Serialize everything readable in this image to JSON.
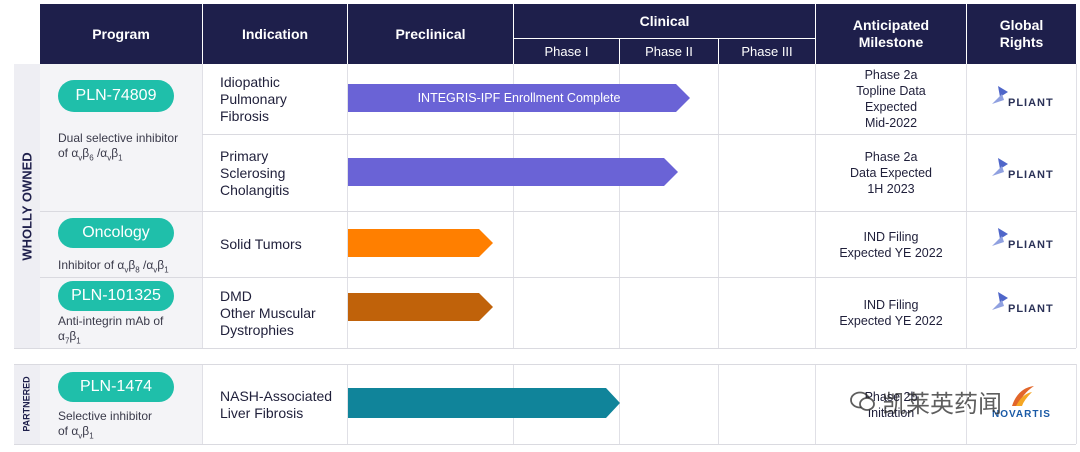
{
  "header": {
    "program": "Program",
    "indication": "Indication",
    "preclinical": "Preclinical",
    "clinical": "Clinical",
    "phase1": "Phase I",
    "phase2": "Phase II",
    "phase3": "Phase III",
    "milestone_line1": "Anticipated",
    "milestone_line2": "Milestone",
    "rights_line1": "Global",
    "rights_line2": "Rights"
  },
  "sections": {
    "wholly_owned": "WHOLLY OWNED",
    "partnered": "PARTNERED"
  },
  "programs": [
    {
      "name": "PLN-74809",
      "desc_line1": "Dual selective inhibitor",
      "desc_line2": "of αvβ6 /αvβ1"
    },
    {
      "name": "Oncology",
      "desc_line1": "Inhibitor of αvβ8 /αvβ1",
      "desc_line2": ""
    },
    {
      "name": "PLN-101325",
      "desc_line1": "Anti-integrin mAb of",
      "desc_line2": "α7β1"
    },
    {
      "name": "PLN-1474",
      "desc_line1": "Selective inhibitor",
      "desc_line2": "of αvβ1"
    }
  ],
  "rows": [
    {
      "indication": [
        "Idiopathic",
        "Pulmonary",
        "Fibrosis"
      ],
      "arrow_label": "INTEGRIS-IPF Enrollment Complete",
      "milestone": [
        "Phase 2a",
        "Topline Data",
        "Expected",
        "Mid-2022"
      ],
      "rights": "PLIANT",
      "color": "#6a63d6"
    },
    {
      "indication": [
        "Primary",
        "Sclerosing",
        "Cholangitis"
      ],
      "arrow_label": "",
      "milestone": [
        "Phase 2a",
        "Data Expected",
        "1H 2023"
      ],
      "rights": "PLIANT",
      "color": "#6a63d6"
    },
    {
      "indication": [
        "Solid Tumors"
      ],
      "arrow_label": "",
      "milestone": [
        "IND Filing",
        "Expected YE 2022"
      ],
      "rights": "PLIANT",
      "color": "#ff7f00"
    },
    {
      "indication": [
        "DMD",
        "Other Muscular",
        "Dystrophies"
      ],
      "arrow_label": "",
      "milestone": [
        "IND Filing",
        "Expected YE 2022"
      ],
      "rights": "PLIANT",
      "color": "#c0620a"
    },
    {
      "indication": [
        "NASH-Associated",
        "Liver Fibrosis"
      ],
      "arrow_label": "",
      "milestone": [
        "Phase 2b",
        "Initiation"
      ],
      "rights": "NOVARTIS",
      "color": "#10849a"
    }
  ],
  "watermark": "凯莱英药闻",
  "colors": {
    "header_bg": "#1e1f4b",
    "pill": "#1fbfaa"
  }
}
